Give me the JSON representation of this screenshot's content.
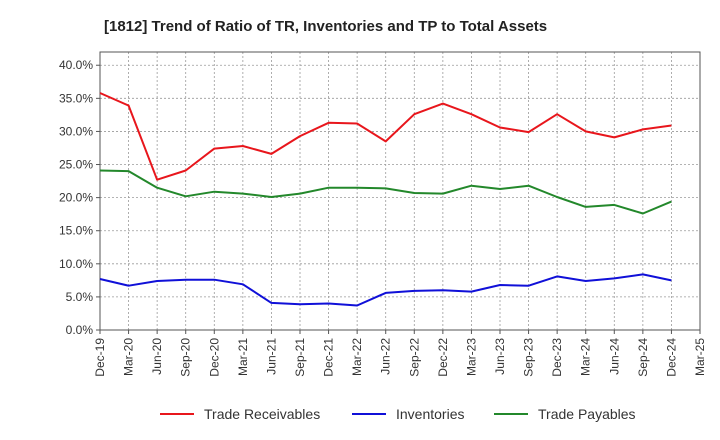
{
  "chart_data": {
    "type": "line",
    "title": "[1812]  Trend of Ratio of TR, Inventories and TP to Total Assets",
    "xlabel": "",
    "ylabel": "",
    "categories": [
      "Dec-19",
      "Mar-20",
      "Jun-20",
      "Sep-20",
      "Dec-20",
      "Mar-21",
      "Jun-21",
      "Sep-21",
      "Dec-21",
      "Mar-22",
      "Jun-22",
      "Sep-22",
      "Dec-22",
      "Mar-23",
      "Jun-23",
      "Sep-23",
      "Dec-23",
      "Mar-24",
      "Jun-24",
      "Sep-24",
      "Dec-24",
      "Mar-25"
    ],
    "ylim": [
      0,
      42
    ],
    "yticks": [
      "0.0%",
      "5.0%",
      "10.0%",
      "15.0%",
      "20.0%",
      "25.0%",
      "30.0%",
      "35.0%",
      "40.0%"
    ],
    "ytick_values": [
      0,
      5,
      10,
      15,
      20,
      25,
      30,
      35,
      40
    ],
    "grid": true,
    "legend_position": "bottom",
    "series": [
      {
        "name": "Trade Receivables",
        "color": "#e8161c",
        "values": [
          35.8,
          33.9,
          22.7,
          24.1,
          27.4,
          27.8,
          26.6,
          29.3,
          31.3,
          31.2,
          28.5,
          32.6,
          34.2,
          32.6,
          30.6,
          29.9,
          32.6,
          30.0,
          29.1,
          30.3,
          30.9,
          null
        ]
      },
      {
        "name": "Inventories",
        "color": "#1010d8",
        "values": [
          7.7,
          6.7,
          7.4,
          7.6,
          7.6,
          6.9,
          4.1,
          3.9,
          4.0,
          3.7,
          5.6,
          5.9,
          6.0,
          5.8,
          6.8,
          6.7,
          8.1,
          7.4,
          7.8,
          8.4,
          7.5,
          null
        ]
      },
      {
        "name": "Trade Payables",
        "color": "#23882b",
        "values": [
          24.1,
          24.0,
          21.5,
          20.2,
          20.9,
          20.6,
          20.1,
          20.6,
          21.5,
          21.5,
          21.4,
          20.7,
          20.6,
          21.8,
          21.3,
          21.8,
          20.1,
          18.6,
          18.9,
          17.6,
          19.4,
          null
        ]
      }
    ]
  }
}
